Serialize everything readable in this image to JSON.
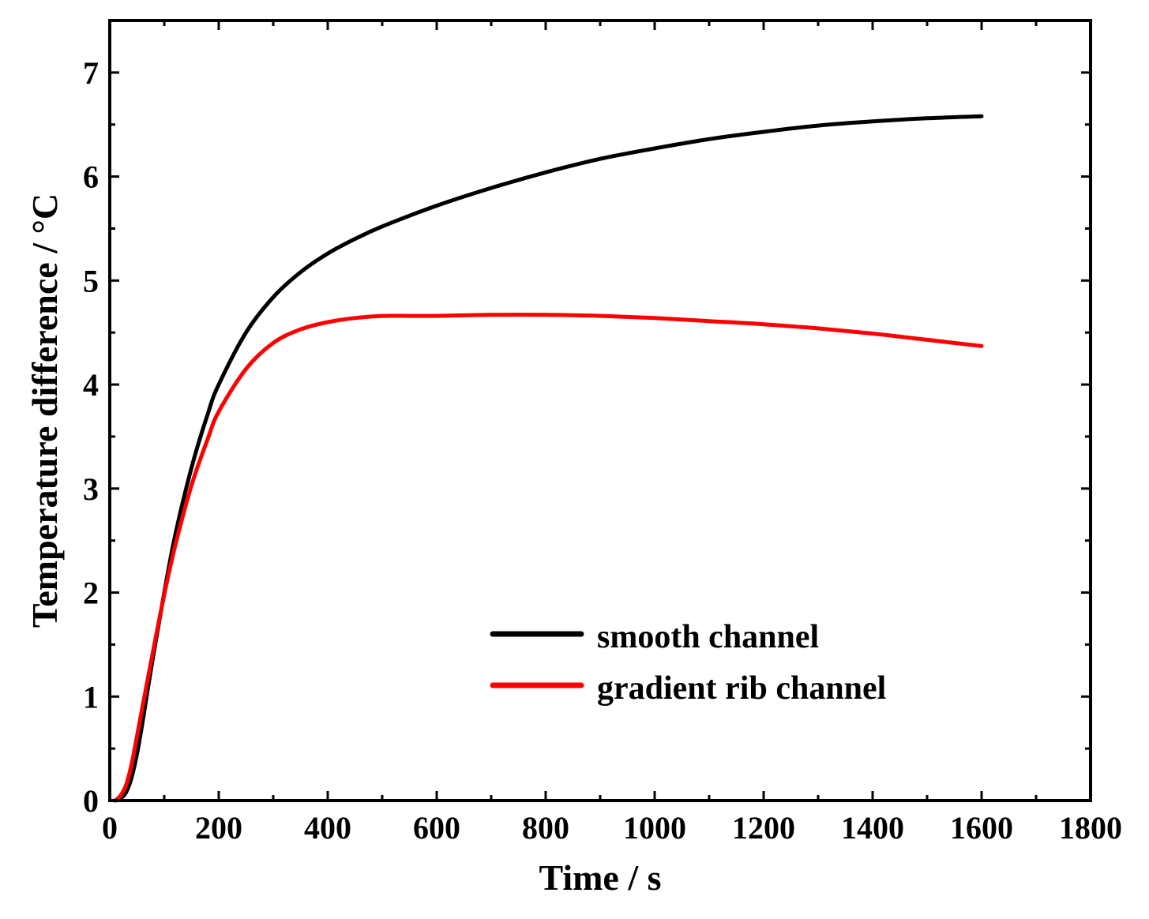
{
  "chart_data": {
    "type": "line",
    "xlabel": "Time / s",
    "ylabel": "Temperature difference / °C",
    "xlim": [
      0,
      1800
    ],
    "ylim": [
      0,
      7.5
    ],
    "xticks": [
      0,
      200,
      400,
      600,
      800,
      1000,
      1200,
      1400,
      1600,
      1800
    ],
    "xtick_labels": [
      "0",
      "200",
      "400",
      "600",
      "800",
      "1000",
      "1200",
      "1400",
      "1600",
      "1800"
    ],
    "yticks": [
      0,
      1,
      2,
      3,
      4,
      5,
      6,
      7
    ],
    "ytick_labels": [
      "0",
      "1",
      "2",
      "3",
      "4",
      "5",
      "6",
      "7"
    ],
    "grid": false,
    "legend_position": "bottom-right",
    "series": [
      {
        "name": "smooth channel",
        "color": "#000000",
        "x": [
          10,
          20,
          30,
          40,
          50,
          60,
          80,
          100,
          120,
          150,
          180,
          200,
          250,
          300,
          350,
          400,
          450,
          500,
          600,
          700,
          800,
          900,
          1000,
          1100,
          1200,
          1300,
          1400,
          1500,
          1600
        ],
        "y": [
          0.0,
          0.02,
          0.08,
          0.22,
          0.45,
          0.75,
          1.4,
          2.0,
          2.55,
          3.2,
          3.72,
          4.0,
          4.5,
          4.84,
          5.08,
          5.26,
          5.4,
          5.52,
          5.72,
          5.89,
          6.04,
          6.17,
          6.27,
          6.36,
          6.43,
          6.49,
          6.53,
          6.56,
          6.58
        ]
      },
      {
        "name": "gradient rib channel",
        "color": "#ff0000",
        "x": [
          10,
          20,
          30,
          40,
          50,
          60,
          80,
          100,
          120,
          150,
          180,
          200,
          250,
          300,
          350,
          400,
          450,
          500,
          550,
          600,
          700,
          800,
          900,
          1000,
          1100,
          1200,
          1300,
          1400,
          1500,
          1600
        ],
        "y": [
          0.0,
          0.05,
          0.15,
          0.35,
          0.62,
          0.9,
          1.45,
          1.98,
          2.45,
          3.03,
          3.48,
          3.74,
          4.15,
          4.4,
          4.53,
          4.6,
          4.64,
          4.66,
          4.66,
          4.66,
          4.67,
          4.67,
          4.66,
          4.64,
          4.61,
          4.58,
          4.54,
          4.49,
          4.43,
          4.37
        ]
      }
    ]
  }
}
